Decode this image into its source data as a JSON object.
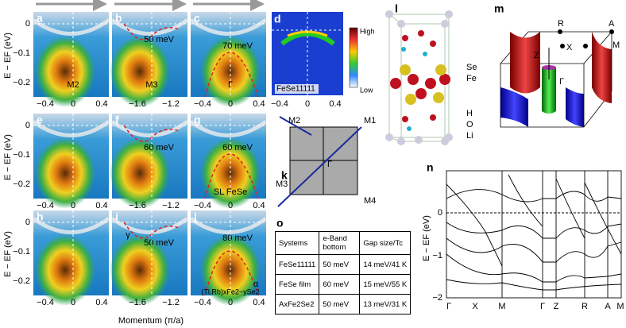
{
  "arpes": {
    "y_label": "E − EF (eV)",
    "x_label": "Momentum (π/a)",
    "y_ticks": [
      "0",
      "−0.1",
      "−0.2"
    ],
    "x_ticks": [
      [
        "−0.4",
        "0",
        "0.4"
      ],
      [
        "−1.6",
        "−1.2"
      ],
      [
        "−0.4",
        "0",
        "0.4"
      ]
    ],
    "panels": [
      {
        "label": "a",
        "notes": [
          "M2"
        ]
      },
      {
        "label": "b",
        "notes": [
          "M3",
          "50 meV"
        ]
      },
      {
        "label": "c",
        "notes": [
          "Γ",
          "70 meV"
        ]
      },
      {
        "label": "e",
        "notes": []
      },
      {
        "label": "f",
        "notes": [
          "60 meV"
        ]
      },
      {
        "label": "g",
        "notes": [
          "60 meV",
          "SL FeSe"
        ]
      },
      {
        "label": "h",
        "notes": []
      },
      {
        "label": "i",
        "notes": [
          "γ",
          "50 meV"
        ]
      },
      {
        "label": "j",
        "notes": [
          "80 meV",
          "α",
          "(Tl,Rb)xFe2−ySe2"
        ]
      }
    ]
  },
  "panel_d": {
    "label": "d",
    "name": "FeSe11111",
    "high": "High",
    "low": "Low",
    "x_ticks": [
      "−0.4",
      "0",
      "0.4"
    ]
  },
  "panel_k": {
    "label": "k",
    "points": [
      "M1",
      "M2",
      "M3",
      "M4",
      "Γ"
    ]
  },
  "panel_l": {
    "label": "l",
    "atoms": [
      "Se",
      "Fe",
      "H",
      "O",
      "Li"
    ]
  },
  "panel_m": {
    "label": "m",
    "points": [
      "R",
      "A",
      "M",
      "X",
      "Z",
      "Γ"
    ]
  },
  "panel_n": {
    "label": "n",
    "y_label": "E − EF (eV)",
    "y_ticks": [
      "0",
      "−1",
      "−2"
    ],
    "x_ticks": [
      "Γ",
      "X",
      "M",
      "Γ",
      "Z",
      "R",
      "A",
      "M"
    ]
  },
  "panel_o": {
    "label": "o",
    "header": [
      "Systems",
      "e-Band bottom",
      "Gap size/Tc"
    ],
    "rows": [
      [
        "FeSe11111",
        "50 meV",
        "14 meV/41 K"
      ],
      [
        "FeSe film",
        "60 meV",
        "15 meV/55 K"
      ],
      [
        "AxFe2Se2",
        "50 meV",
        "13 meV/31 K"
      ]
    ]
  }
}
